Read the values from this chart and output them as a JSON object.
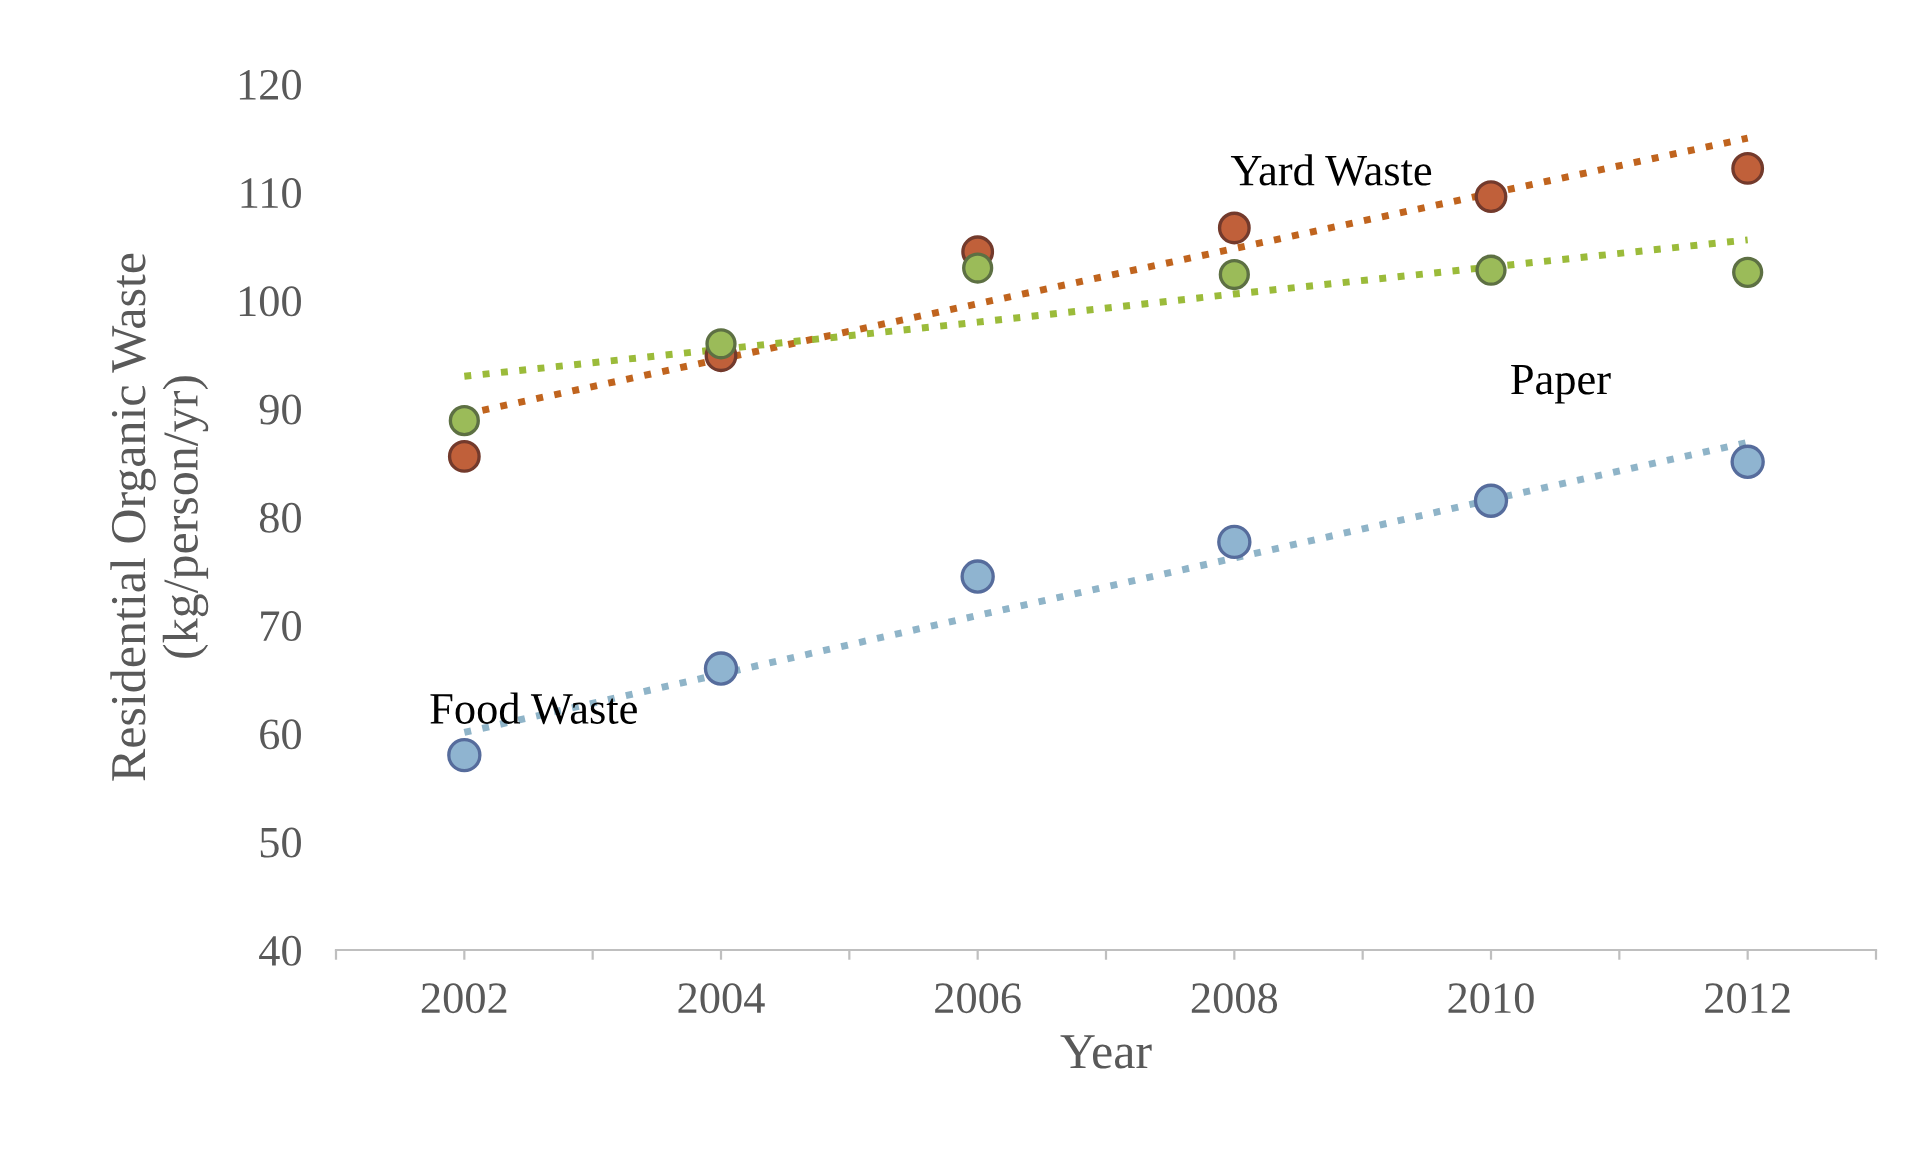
{
  "chart_data": {
    "type": "scatter",
    "xlabel": "Year",
    "ylabel": "Residential Organic Waste\n(kg/person/yr)",
    "x": [
      2002,
      2004,
      2006,
      2008,
      2010,
      2012
    ],
    "xlim": [
      2001,
      2013
    ],
    "xticks": [
      {
        "value": 2001,
        "label": null
      },
      2002,
      {
        "value": 2003,
        "label": null
      },
      2004,
      {
        "value": 2005,
        "label": null
      },
      2006,
      {
        "value": 2007,
        "label": null
      },
      2008,
      {
        "value": 2009,
        "label": null
      },
      2010,
      {
        "value": 2011,
        "label": null
      },
      2012,
      {
        "value": 2013,
        "label": null
      }
    ],
    "ylim": [
      40,
      120
    ],
    "yticks": [
      40,
      50,
      60,
      70,
      80,
      90,
      100,
      110,
      120
    ],
    "grid": false,
    "legend": false,
    "marker": "circle",
    "series": [
      {
        "name": "Food Waste",
        "color": "#8fb4d0",
        "values": [
          58,
          66,
          74.5,
          77.7,
          81.5,
          85.1
        ]
      },
      {
        "name": "Yard Waste",
        "color": "#c0603a",
        "values": [
          85.6,
          94.9,
          104.5,
          106.7,
          109.6,
          112.2
        ]
      },
      {
        "name": "Paper",
        "color": "#9bbb59",
        "values": [
          88.9,
          96,
          103,
          102.4,
          102.8,
          102.6
        ]
      },
      {
        "type": "line",
        "line_style": "dotted",
        "marker": "none",
        "color": "#8fb4c8",
        "values": [
          60.1,
          65.5,
          70.9,
          76.2,
          81.6,
          86.9
        ]
      },
      {
        "type": "line",
        "line_style": "dotted",
        "marker": "none",
        "color": "#c0641e",
        "values": [
          89.5,
          94.6,
          99.7,
          104.8,
          109.9,
          115
        ]
      },
      {
        "type": "line",
        "line_style": "dotted",
        "marker": "none",
        "color": "#9bbb3a",
        "values": [
          93,
          95.5,
          98,
          100.6,
          103.1,
          105.6
        ]
      }
    ]
  }
}
